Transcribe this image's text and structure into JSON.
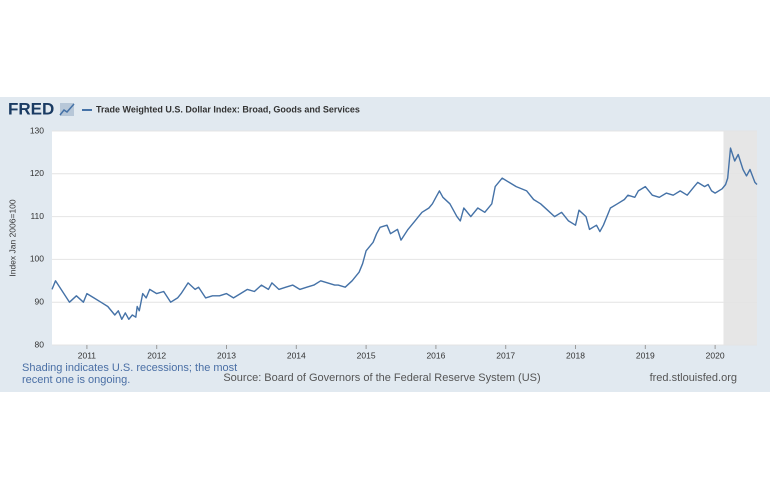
{
  "chart_data": {
    "type": "line",
    "logo": "FRED",
    "y_label": "Index Jan 2006=100",
    "footnote": "Shading indicates U.S. recessions; the most recent one is ongoing.",
    "source": "Source: Board of Governors of the Federal Reserve System (US)",
    "site": "fred.stlouisfed.org",
    "xlim": [
      2010.5,
      2020.6
    ],
    "xticks": [
      2011,
      2012,
      2013,
      2014,
      2015,
      2016,
      2017,
      2018,
      2019,
      2020
    ],
    "ylim": [
      80,
      130
    ],
    "yticks": [
      80,
      90,
      100,
      110,
      120,
      130
    ],
    "grid": true,
    "recessions": [
      {
        "start": 2020.12,
        "end": 2020.6
      }
    ],
    "x": [
      2010.5,
      2010.55,
      2010.75,
      2010.85,
      2010.95,
      2011.0,
      2011.1,
      2011.2,
      2011.3,
      2011.4,
      2011.45,
      2011.5,
      2011.55,
      2011.6,
      2011.65,
      2011.7,
      2011.72,
      2011.75,
      2011.8,
      2011.85,
      2011.9,
      2012.0,
      2012.1,
      2012.2,
      2012.3,
      2012.35,
      2012.45,
      2012.55,
      2012.6,
      2012.7,
      2012.8,
      2012.9,
      2013.0,
      2013.1,
      2013.2,
      2013.3,
      2013.4,
      2013.5,
      2013.6,
      2013.65,
      2013.75,
      2013.85,
      2013.95,
      2014.05,
      2014.15,
      2014.25,
      2014.35,
      2014.45,
      2014.55,
      2014.6,
      2014.7,
      2014.8,
      2014.9,
      2014.95,
      2015.0,
      2015.1,
      2015.15,
      2015.2,
      2015.3,
      2015.35,
      2015.45,
      2015.5,
      2015.6,
      2015.7,
      2015.75,
      2015.8,
      2015.9,
      2015.95,
      2016.0,
      2016.05,
      2016.1,
      2016.2,
      2016.3,
      2016.35,
      2016.4,
      2016.5,
      2016.6,
      2016.7,
      2016.8,
      2016.85,
      2016.95,
      2017.05,
      2017.15,
      2017.3,
      2017.4,
      2017.5,
      2017.6,
      2017.7,
      2017.8,
      2017.9,
      2018.0,
      2018.05,
      2018.15,
      2018.2,
      2018.3,
      2018.35,
      2018.4,
      2018.5,
      2018.6,
      2018.7,
      2018.75,
      2018.85,
      2018.9,
      2019.0,
      2019.1,
      2019.2,
      2019.3,
      2019.4,
      2019.5,
      2019.6,
      2019.7,
      2019.75,
      2019.85,
      2019.9,
      2019.95,
      2020.0,
      2020.1,
      2020.15,
      2020.18,
      2020.22,
      2020.28,
      2020.33,
      2020.4,
      2020.45,
      2020.5,
      2020.57,
      2020.6
    ],
    "series": [
      {
        "name": "Trade Weighted U.S. Dollar Index: Broad, Goods and Services",
        "color": "#4572a7",
        "values": [
          93,
          95,
          90,
          91.5,
          90,
          92,
          91,
          90,
          89,
          87,
          88,
          86,
          87.5,
          86,
          87,
          86.5,
          89,
          88,
          92,
          91,
          93,
          92,
          92.5,
          90,
          91,
          92,
          94.5,
          93,
          93.5,
          91,
          91.5,
          91.5,
          92,
          91,
          92,
          93,
          92.5,
          94,
          93,
          94.5,
          93,
          93.5,
          94,
          93,
          93.5,
          94,
          95,
          94.5,
          94,
          94,
          93.5,
          95,
          97,
          99,
          102,
          104,
          106,
          107.5,
          108,
          106,
          107,
          104.5,
          107,
          109,
          110,
          111,
          112,
          113,
          114.5,
          116,
          114.5,
          113,
          110,
          109,
          112,
          110,
          112,
          111,
          113,
          117,
          119,
          118,
          117,
          116,
          114,
          113,
          111.5,
          110,
          111,
          109,
          108,
          111.5,
          110,
          107,
          108,
          106.5,
          108,
          112,
          113,
          114,
          115,
          114.5,
          116,
          117,
          115,
          114.5,
          115.5,
          115,
          116,
          115,
          117,
          118,
          117,
          117.5,
          116,
          115.5,
          116.5,
          117.5,
          119,
          126,
          123,
          124.5,
          121,
          119.5,
          121,
          118,
          117.5
        ]
      }
    ]
  }
}
